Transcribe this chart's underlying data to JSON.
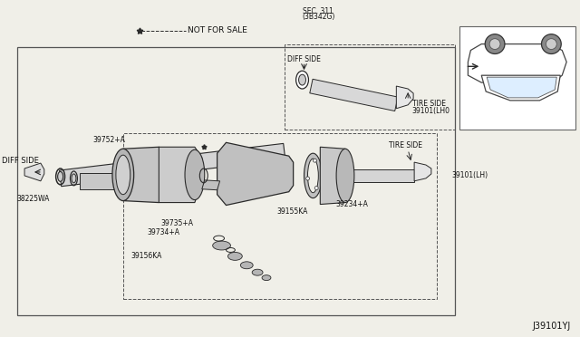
{
  "bg_color": "#f0efe8",
  "border_color": "#555555",
  "line_color": "#2a2a2a",
  "text_color": "#111111",
  "light_gray": "#cccccc",
  "mid_gray": "#aaaaaa",
  "dark_gray": "#777777",
  "diagram_id": "J39101YJ",
  "labels": {
    "not_for_sale": "NOT FOR SALE",
    "diff_side_left": "DIFF SIDE",
    "diff_side_top": "DIFF SIDE",
    "tire_side_top": "TIRE SIDE",
    "tire_side_bottom": "TIRE SIDE",
    "sec311": "SEC. 311",
    "sec311b": "(3B342G)",
    "p39101_lh0": "39101(LH0",
    "p39752": "39752+A",
    "p38225": "38225WA",
    "p39735": "39735+A",
    "p39734": "39734+A",
    "p39156": "39156KA",
    "p39155": "39155KA",
    "p39234": "39234+A",
    "p39101_lh": "39101(LH)"
  }
}
